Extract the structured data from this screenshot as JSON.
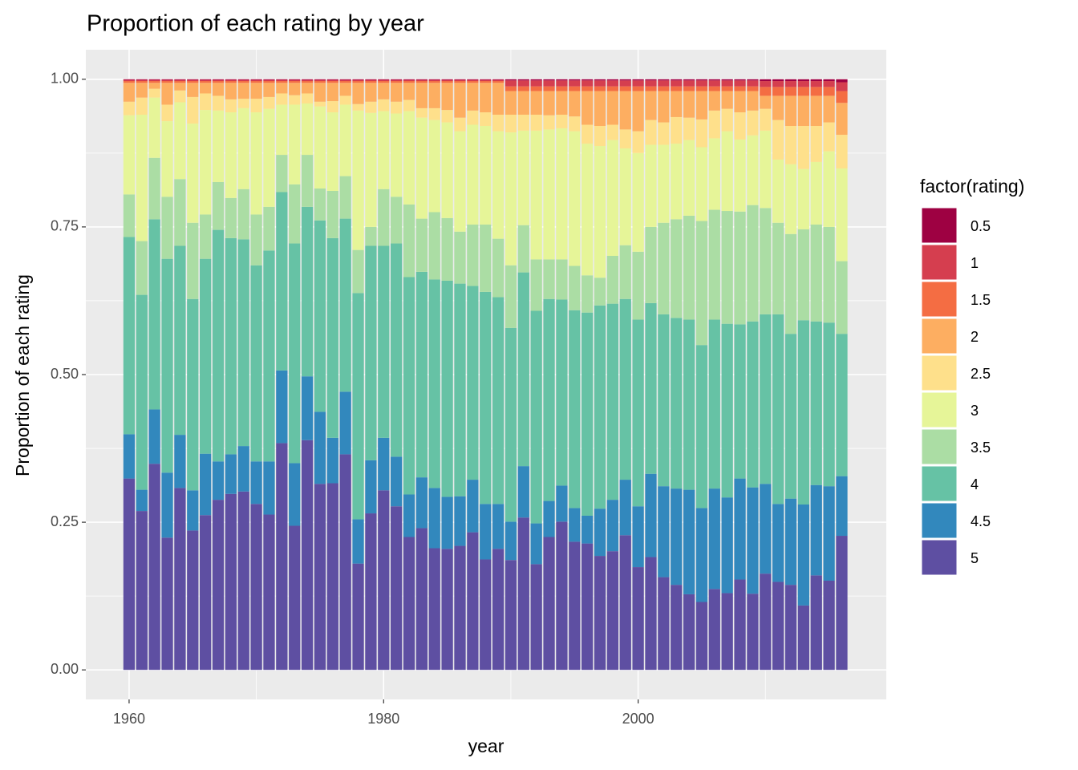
{
  "chart_data": {
    "type": "stacked_bar",
    "title": "Proportion of each rating by year",
    "xlabel": "year",
    "ylabel": "Proportion of each rating",
    "legend_title": "factor(rating)",
    "legend_position": "right",
    "grid": true,
    "x": [
      1960,
      1961,
      1962,
      1963,
      1964,
      1965,
      1966,
      1967,
      1968,
      1969,
      1970,
      1971,
      1972,
      1973,
      1974,
      1975,
      1976,
      1977,
      1978,
      1979,
      1980,
      1981,
      1982,
      1983,
      1984,
      1985,
      1986,
      1987,
      1988,
      1989,
      1990,
      1991,
      1992,
      1993,
      1994,
      1995,
      1996,
      1997,
      1998,
      1999,
      2000,
      2001,
      2002,
      2003,
      2004,
      2005,
      2006,
      2007,
      2008,
      2009,
      2010,
      2011,
      2012,
      2013,
      2014,
      2015,
      2016
    ],
    "xlim": [
      1956.6,
      2019.5
    ],
    "xticks": [
      1960,
      1980,
      2000
    ],
    "ylim": [
      -0.05,
      1.05
    ],
    "yticks": [
      {
        "value": 0,
        "label": "0.00"
      },
      {
        "value": 0.25,
        "label": "0.25"
      },
      {
        "value": 0.5,
        "label": "0.50"
      },
      {
        "value": 0.75,
        "label": "0.75"
      },
      {
        "value": 1,
        "label": "1.00"
      }
    ],
    "series": [
      {
        "name": "0.5",
        "color": "#9E0142",
        "values": [
          0.001,
          0.001,
          0.001,
          0.001,
          0.001,
          0.001,
          0.001,
          0.001,
          0.001,
          0.001,
          0.001,
          0.001,
          0.001,
          0.001,
          0.001,
          0.001,
          0.001,
          0.001,
          0.001,
          0.001,
          0.001,
          0.001,
          0.001,
          0.001,
          0.001,
          0.001,
          0.001,
          0.001,
          0.001,
          0.001,
          0.002,
          0.002,
          0.002,
          0.002,
          0.002,
          0.002,
          0.002,
          0.002,
          0.002,
          0.002,
          0.002,
          0.002,
          0.002,
          0.002,
          0.002,
          0.002,
          0.002,
          0.002,
          0.002,
          0.002,
          0.003,
          0.003,
          0.003,
          0.003,
          0.003,
          0.003,
          0.005
        ]
      },
      {
        "name": "1",
        "color": "#D53E4F",
        "values": [
          0.002,
          0.002,
          0.002,
          0.002,
          0.002,
          0.002,
          0.002,
          0.002,
          0.002,
          0.002,
          0.002,
          0.002,
          0.002,
          0.002,
          0.002,
          0.002,
          0.002,
          0.002,
          0.002,
          0.002,
          0.002,
          0.002,
          0.002,
          0.002,
          0.002,
          0.002,
          0.002,
          0.002,
          0.002,
          0.002,
          0.01,
          0.01,
          0.01,
          0.01,
          0.01,
          0.01,
          0.01,
          0.01,
          0.01,
          0.01,
          0.01,
          0.01,
          0.01,
          0.01,
          0.01,
          0.01,
          0.01,
          0.01,
          0.01,
          0.01,
          0.01,
          0.01,
          0.01,
          0.01,
          0.01,
          0.01,
          0.015
        ]
      },
      {
        "name": "1.5",
        "color": "#F46D43",
        "values": [
          0.003,
          0.003,
          0.003,
          0.003,
          0.003,
          0.003,
          0.003,
          0.003,
          0.003,
          0.003,
          0.003,
          0.003,
          0.003,
          0.003,
          0.003,
          0.003,
          0.003,
          0.003,
          0.003,
          0.003,
          0.003,
          0.003,
          0.003,
          0.003,
          0.003,
          0.003,
          0.003,
          0.003,
          0.003,
          0.003,
          0.008,
          0.008,
          0.008,
          0.008,
          0.008,
          0.008,
          0.008,
          0.008,
          0.008,
          0.008,
          0.008,
          0.008,
          0.008,
          0.008,
          0.008,
          0.008,
          0.008,
          0.008,
          0.008,
          0.008,
          0.015,
          0.015,
          0.015,
          0.015,
          0.015,
          0.015,
          0.02
        ]
      },
      {
        "name": "2",
        "color": "#FDAE61",
        "values": [
          0.032,
          0.025,
          0.01,
          0.037,
          0.013,
          0.024,
          0.018,
          0.022,
          0.028,
          0.027,
          0.027,
          0.024,
          0.018,
          0.021,
          0.018,
          0.032,
          0.031,
          0.022,
          0.036,
          0.032,
          0.028,
          0.032,
          0.029,
          0.043,
          0.043,
          0.046,
          0.059,
          0.047,
          0.05,
          0.054,
          0.04,
          0.04,
          0.04,
          0.041,
          0.04,
          0.043,
          0.057,
          0.059,
          0.057,
          0.065,
          0.068,
          0.049,
          0.053,
          0.044,
          0.045,
          0.048,
          0.033,
          0.03,
          0.036,
          0.033,
          0.022,
          0.041,
          0.051,
          0.051,
          0.051,
          0.045,
          0.054
        ]
      },
      {
        "name": "2.5",
        "color": "#FEE08B",
        "values": [
          0.023,
          0.029,
          0.015,
          0.028,
          0.02,
          0.045,
          0.028,
          0.025,
          0.022,
          0.016,
          0.023,
          0.02,
          0.019,
          0.016,
          0.017,
          0.008,
          0.019,
          0.015,
          0.011,
          0.019,
          0.02,
          0.02,
          0.019,
          0.016,
          0.02,
          0.021,
          0.023,
          0.024,
          0.023,
          0.028,
          0.03,
          0.027,
          0.027,
          0.024,
          0.023,
          0.025,
          0.032,
          0.034,
          0.026,
          0.032,
          0.037,
          0.042,
          0.038,
          0.045,
          0.038,
          0.047,
          0.047,
          0.038,
          0.046,
          0.042,
          0.037,
          0.067,
          0.065,
          0.073,
          0.061,
          0.049,
          0.057
        ]
      },
      {
        "name": "3",
        "color": "#E6F598",
        "values": [
          0.134,
          0.214,
          0.102,
          0.128,
          0.13,
          0.168,
          0.177,
          0.121,
          0.145,
          0.137,
          0.173,
          0.166,
          0.085,
          0.135,
          0.087,
          0.139,
          0.133,
          0.121,
          0.236,
          0.193,
          0.132,
          0.141,
          0.158,
          0.171,
          0.156,
          0.162,
          0.17,
          0.169,
          0.167,
          0.182,
          0.225,
          0.16,
          0.218,
          0.22,
          0.222,
          0.228,
          0.223,
          0.223,
          0.196,
          0.164,
          0.167,
          0.139,
          0.132,
          0.128,
          0.128,
          0.125,
          0.121,
          0.135,
          0.122,
          0.118,
          0.131,
          0.107,
          0.118,
          0.102,
          0.106,
          0.128,
          0.157
        ]
      },
      {
        "name": "3.5",
        "color": "#ABDDA4",
        "values": [
          0.072,
          0.091,
          0.104,
          0.105,
          0.113,
          0.129,
          0.075,
          0.081,
          0.068,
          0.085,
          0.086,
          0.074,
          0.063,
          0.1,
          0.088,
          0.054,
          0.08,
          0.072,
          0.073,
          0.032,
          0.096,
          0.079,
          0.123,
          0.09,
          0.114,
          0.106,
          0.088,
          0.104,
          0.114,
          0.099,
          0.106,
          0.08,
          0.087,
          0.067,
          0.068,
          0.075,
          0.063,
          0.047,
          0.081,
          0.091,
          0.115,
          0.129,
          0.155,
          0.167,
          0.176,
          0.21,
          0.186,
          0.191,
          0.191,
          0.197,
          0.18,
          0.155,
          0.169,
          0.154,
          0.164,
          0.162,
          0.123
        ]
      },
      {
        "name": "4",
        "color": "#66C2A5",
        "values": [
          0.334,
          0.33,
          0.322,
          0.362,
          0.32,
          0.324,
          0.33,
          0.392,
          0.366,
          0.35,
          0.332,
          0.357,
          0.302,
          0.372,
          0.287,
          0.324,
          0.338,
          0.293,
          0.383,
          0.363,
          0.325,
          0.361,
          0.368,
          0.348,
          0.353,
          0.366,
          0.36,
          0.328,
          0.359,
          0.35,
          0.328,
          0.328,
          0.36,
          0.342,
          0.315,
          0.335,
          0.344,
          0.344,
          0.332,
          0.306,
          0.316,
          0.289,
          0.291,
          0.289,
          0.288,
          0.276,
          0.286,
          0.294,
          0.261,
          0.281,
          0.287,
          0.321,
          0.279,
          0.312,
          0.277,
          0.277,
          0.241
        ]
      },
      {
        "name": "4.5",
        "color": "#3288BD",
        "values": [
          0.075,
          0.036,
          0.092,
          0.11,
          0.09,
          0.068,
          0.104,
          0.065,
          0.067,
          0.077,
          0.072,
          0.09,
          0.123,
          0.106,
          0.108,
          0.122,
          0.077,
          0.106,
          0.075,
          0.09,
          0.089,
          0.084,
          0.072,
          0.086,
          0.102,
          0.088,
          0.084,
          0.089,
          0.094,
          0.076,
          0.065,
          0.087,
          0.069,
          0.061,
          0.061,
          0.057,
          0.047,
          0.08,
          0.087,
          0.094,
          0.103,
          0.141,
          0.154,
          0.163,
          0.177,
          0.159,
          0.17,
          0.162,
          0.171,
          0.18,
          0.152,
          0.132,
          0.146,
          0.171,
          0.153,
          0.16,
          0.101
        ]
      },
      {
        "name": "5",
        "color": "#5E4FA2",
        "values": [
          0.324,
          0.269,
          0.349,
          0.224,
          0.308,
          0.236,
          0.262,
          0.288,
          0.298,
          0.302,
          0.281,
          0.263,
          0.384,
          0.244,
          0.389,
          0.315,
          0.316,
          0.365,
          0.18,
          0.265,
          0.304,
          0.277,
          0.225,
          0.24,
          0.206,
          0.205,
          0.21,
          0.233,
          0.187,
          0.205,
          0.186,
          0.258,
          0.179,
          0.225,
          0.251,
          0.217,
          0.214,
          0.193,
          0.201,
          0.228,
          0.174,
          0.191,
          0.157,
          0.144,
          0.128,
          0.115,
          0.137,
          0.13,
          0.153,
          0.129,
          0.163,
          0.149,
          0.144,
          0.109,
          0.16,
          0.151,
          0.227
        ]
      }
    ]
  }
}
